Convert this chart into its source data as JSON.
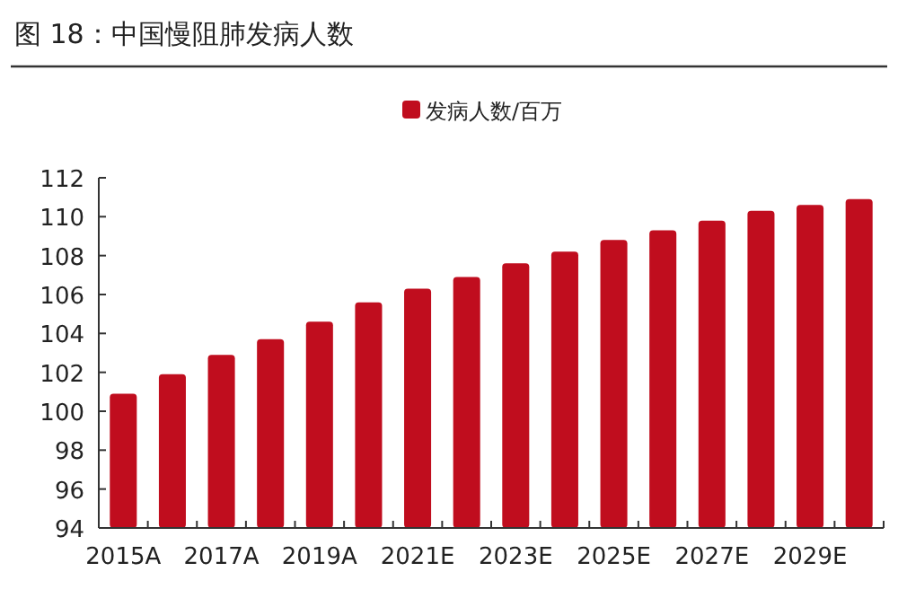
{
  "chart_data": {
    "type": "bar",
    "title": "图 18：中国慢阻肺发病人数",
    "categories": [
      "2015A",
      null,
      "2017A",
      null,
      "2019A",
      null,
      "2021E",
      null,
      "2023E",
      null,
      "2025E",
      null,
      "2027E",
      null,
      "2029E",
      null
    ],
    "series": [
      {
        "name": "发病人数/百万",
        "color": "#c00d1e",
        "values": [
          100.9,
          101.9,
          102.9,
          103.7,
          104.6,
          105.6,
          106.3,
          106.9,
          107.6,
          108.2,
          108.8,
          109.3,
          109.8,
          110.3,
          110.6,
          110.9
        ]
      }
    ],
    "ylim": [
      94,
      112
    ],
    "yticks": [
      94,
      96,
      98,
      100,
      102,
      104,
      106,
      108,
      110,
      112
    ],
    "legend": "top",
    "grid": false
  }
}
